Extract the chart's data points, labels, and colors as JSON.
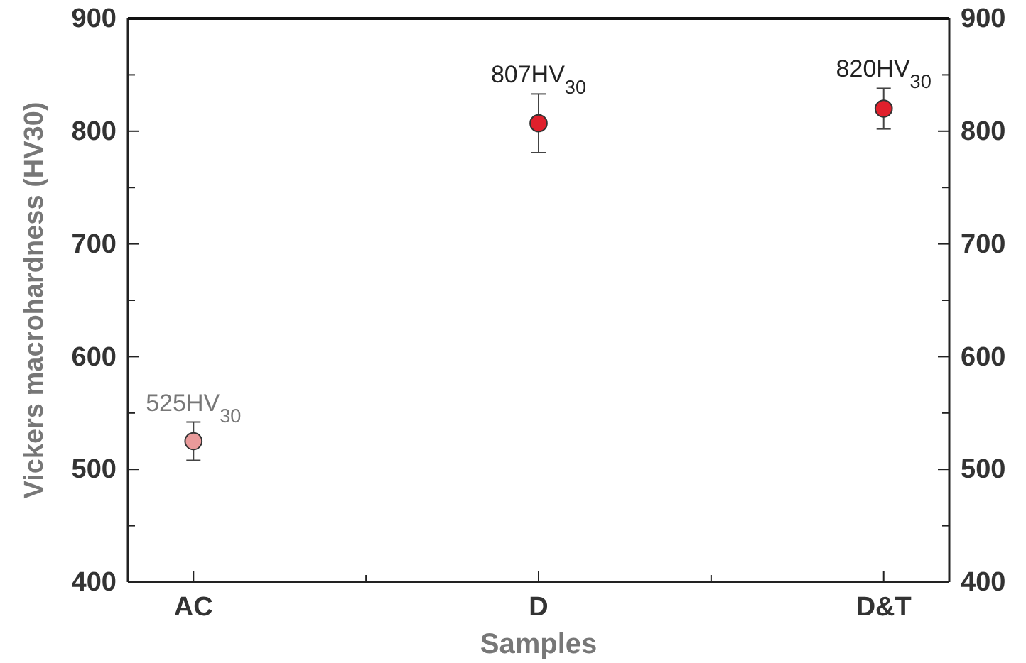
{
  "chart_data": {
    "type": "scatter",
    "xlabel": "Samples",
    "ylabel": "Vickers macrohardness (HV30)",
    "categories": [
      "AC",
      "D",
      "D&T"
    ],
    "values": [
      525,
      807,
      820
    ],
    "colors": [
      "#e99a9a",
      "#e0202c",
      "#e0202c"
    ],
    "errors": [
      17,
      26,
      18
    ],
    "value_labels": [
      "525HV$_{30}$",
      "807HV$_{30}$",
      "820HV$_{30}$"
    ],
    "marker": "circle",
    "ylim": [
      400,
      900
    ],
    "yticks": [
      400,
      {
        "value": 450,
        "label": null
      },
      500,
      {
        "value": 550,
        "label": null
      },
      600,
      {
        "value": 650,
        "label": null
      },
      700,
      {
        "value": 750,
        "label": null
      },
      800,
      {
        "value": 850,
        "label": null
      },
      900
    ],
    "y2lim": [
      400,
      900
    ],
    "y2ticks": [
      400,
      {
        "value": 450,
        "label": null
      },
      500,
      {
        "value": 550,
        "label": null
      },
      600,
      {
        "value": 650,
        "label": null
      },
      700,
      {
        "value": 750,
        "label": null
      },
      800,
      {
        "value": 850,
        "label": null
      },
      900
    ]
  }
}
